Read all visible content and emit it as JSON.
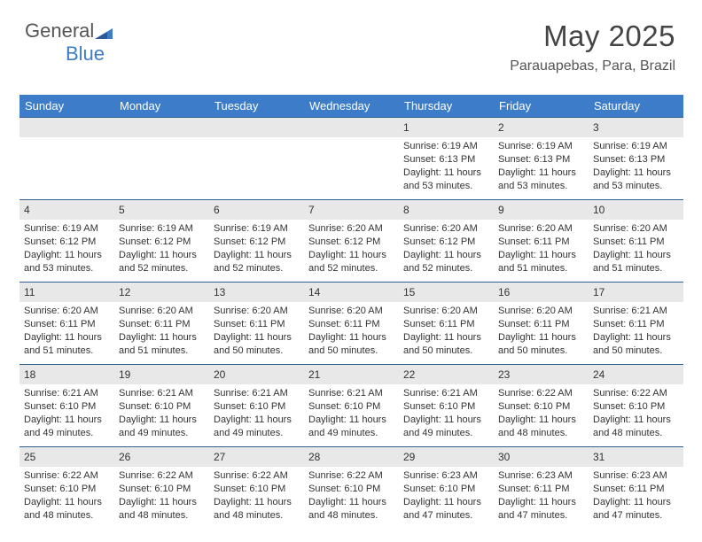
{
  "logo": {
    "text1": "General",
    "text2": "Blue"
  },
  "header": {
    "month_title": "May 2025",
    "location": "Parauapebas, Para, Brazil"
  },
  "colors": {
    "header_bg": "#3d7cc9",
    "daynum_bg": "#e8e8e8",
    "daynum_border": "#2f5f8f",
    "text": "#333333"
  },
  "day_names": [
    "Sunday",
    "Monday",
    "Tuesday",
    "Wednesday",
    "Thursday",
    "Friday",
    "Saturday"
  ],
  "weeks": [
    [
      {
        "n": "",
        "sr": "",
        "ss": "",
        "dl": ""
      },
      {
        "n": "",
        "sr": "",
        "ss": "",
        "dl": ""
      },
      {
        "n": "",
        "sr": "",
        "ss": "",
        "dl": ""
      },
      {
        "n": "",
        "sr": "",
        "ss": "",
        "dl": ""
      },
      {
        "n": "1",
        "sr": "Sunrise: 6:19 AM",
        "ss": "Sunset: 6:13 PM",
        "dl": "Daylight: 11 hours and 53 minutes."
      },
      {
        "n": "2",
        "sr": "Sunrise: 6:19 AM",
        "ss": "Sunset: 6:13 PM",
        "dl": "Daylight: 11 hours and 53 minutes."
      },
      {
        "n": "3",
        "sr": "Sunrise: 6:19 AM",
        "ss": "Sunset: 6:13 PM",
        "dl": "Daylight: 11 hours and 53 minutes."
      }
    ],
    [
      {
        "n": "4",
        "sr": "Sunrise: 6:19 AM",
        "ss": "Sunset: 6:12 PM",
        "dl": "Daylight: 11 hours and 53 minutes."
      },
      {
        "n": "5",
        "sr": "Sunrise: 6:19 AM",
        "ss": "Sunset: 6:12 PM",
        "dl": "Daylight: 11 hours and 52 minutes."
      },
      {
        "n": "6",
        "sr": "Sunrise: 6:19 AM",
        "ss": "Sunset: 6:12 PM",
        "dl": "Daylight: 11 hours and 52 minutes."
      },
      {
        "n": "7",
        "sr": "Sunrise: 6:20 AM",
        "ss": "Sunset: 6:12 PM",
        "dl": "Daylight: 11 hours and 52 minutes."
      },
      {
        "n": "8",
        "sr": "Sunrise: 6:20 AM",
        "ss": "Sunset: 6:12 PM",
        "dl": "Daylight: 11 hours and 52 minutes."
      },
      {
        "n": "9",
        "sr": "Sunrise: 6:20 AM",
        "ss": "Sunset: 6:11 PM",
        "dl": "Daylight: 11 hours and 51 minutes."
      },
      {
        "n": "10",
        "sr": "Sunrise: 6:20 AM",
        "ss": "Sunset: 6:11 PM",
        "dl": "Daylight: 11 hours and 51 minutes."
      }
    ],
    [
      {
        "n": "11",
        "sr": "Sunrise: 6:20 AM",
        "ss": "Sunset: 6:11 PM",
        "dl": "Daylight: 11 hours and 51 minutes."
      },
      {
        "n": "12",
        "sr": "Sunrise: 6:20 AM",
        "ss": "Sunset: 6:11 PM",
        "dl": "Daylight: 11 hours and 51 minutes."
      },
      {
        "n": "13",
        "sr": "Sunrise: 6:20 AM",
        "ss": "Sunset: 6:11 PM",
        "dl": "Daylight: 11 hours and 50 minutes."
      },
      {
        "n": "14",
        "sr": "Sunrise: 6:20 AM",
        "ss": "Sunset: 6:11 PM",
        "dl": "Daylight: 11 hours and 50 minutes."
      },
      {
        "n": "15",
        "sr": "Sunrise: 6:20 AM",
        "ss": "Sunset: 6:11 PM",
        "dl": "Daylight: 11 hours and 50 minutes."
      },
      {
        "n": "16",
        "sr": "Sunrise: 6:20 AM",
        "ss": "Sunset: 6:11 PM",
        "dl": "Daylight: 11 hours and 50 minutes."
      },
      {
        "n": "17",
        "sr": "Sunrise: 6:21 AM",
        "ss": "Sunset: 6:11 PM",
        "dl": "Daylight: 11 hours and 50 minutes."
      }
    ],
    [
      {
        "n": "18",
        "sr": "Sunrise: 6:21 AM",
        "ss": "Sunset: 6:10 PM",
        "dl": "Daylight: 11 hours and 49 minutes."
      },
      {
        "n": "19",
        "sr": "Sunrise: 6:21 AM",
        "ss": "Sunset: 6:10 PM",
        "dl": "Daylight: 11 hours and 49 minutes."
      },
      {
        "n": "20",
        "sr": "Sunrise: 6:21 AM",
        "ss": "Sunset: 6:10 PM",
        "dl": "Daylight: 11 hours and 49 minutes."
      },
      {
        "n": "21",
        "sr": "Sunrise: 6:21 AM",
        "ss": "Sunset: 6:10 PM",
        "dl": "Daylight: 11 hours and 49 minutes."
      },
      {
        "n": "22",
        "sr": "Sunrise: 6:21 AM",
        "ss": "Sunset: 6:10 PM",
        "dl": "Daylight: 11 hours and 49 minutes."
      },
      {
        "n": "23",
        "sr": "Sunrise: 6:22 AM",
        "ss": "Sunset: 6:10 PM",
        "dl": "Daylight: 11 hours and 48 minutes."
      },
      {
        "n": "24",
        "sr": "Sunrise: 6:22 AM",
        "ss": "Sunset: 6:10 PM",
        "dl": "Daylight: 11 hours and 48 minutes."
      }
    ],
    [
      {
        "n": "25",
        "sr": "Sunrise: 6:22 AM",
        "ss": "Sunset: 6:10 PM",
        "dl": "Daylight: 11 hours and 48 minutes."
      },
      {
        "n": "26",
        "sr": "Sunrise: 6:22 AM",
        "ss": "Sunset: 6:10 PM",
        "dl": "Daylight: 11 hours and 48 minutes."
      },
      {
        "n": "27",
        "sr": "Sunrise: 6:22 AM",
        "ss": "Sunset: 6:10 PM",
        "dl": "Daylight: 11 hours and 48 minutes."
      },
      {
        "n": "28",
        "sr": "Sunrise: 6:22 AM",
        "ss": "Sunset: 6:10 PM",
        "dl": "Daylight: 11 hours and 48 minutes."
      },
      {
        "n": "29",
        "sr": "Sunrise: 6:23 AM",
        "ss": "Sunset: 6:10 PM",
        "dl": "Daylight: 11 hours and 47 minutes."
      },
      {
        "n": "30",
        "sr": "Sunrise: 6:23 AM",
        "ss": "Sunset: 6:11 PM",
        "dl": "Daylight: 11 hours and 47 minutes."
      },
      {
        "n": "31",
        "sr": "Sunrise: 6:23 AM",
        "ss": "Sunset: 6:11 PM",
        "dl": "Daylight: 11 hours and 47 minutes."
      }
    ]
  ]
}
